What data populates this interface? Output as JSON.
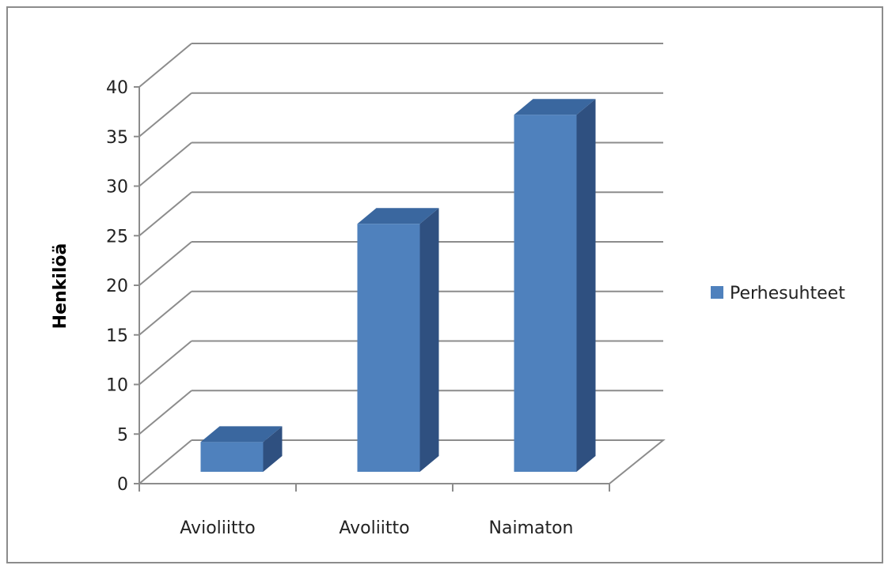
{
  "chart_data": {
    "type": "bar",
    "style": "3d-column",
    "categories": [
      "Avioliitto",
      "Avoliitto",
      "Naimaton"
    ],
    "series": [
      {
        "name": "Perhesuhteet",
        "values": [
          3,
          25,
          36
        ]
      }
    ],
    "title": "",
    "xlabel": "",
    "ylabel": "Henkilöä",
    "ylim": [
      0,
      40
    ],
    "yticks": [
      "0",
      "5",
      "10",
      "15",
      "20",
      "25",
      "30",
      "35",
      "40"
    ],
    "grid": true,
    "legend_position": "right",
    "colors": {
      "bar_front": "#4f81bd",
      "bar_side": "#2f5080",
      "bar_top": "#3a679f",
      "gridline": "#8c8c8c",
      "border": "#8c8c8c"
    }
  }
}
